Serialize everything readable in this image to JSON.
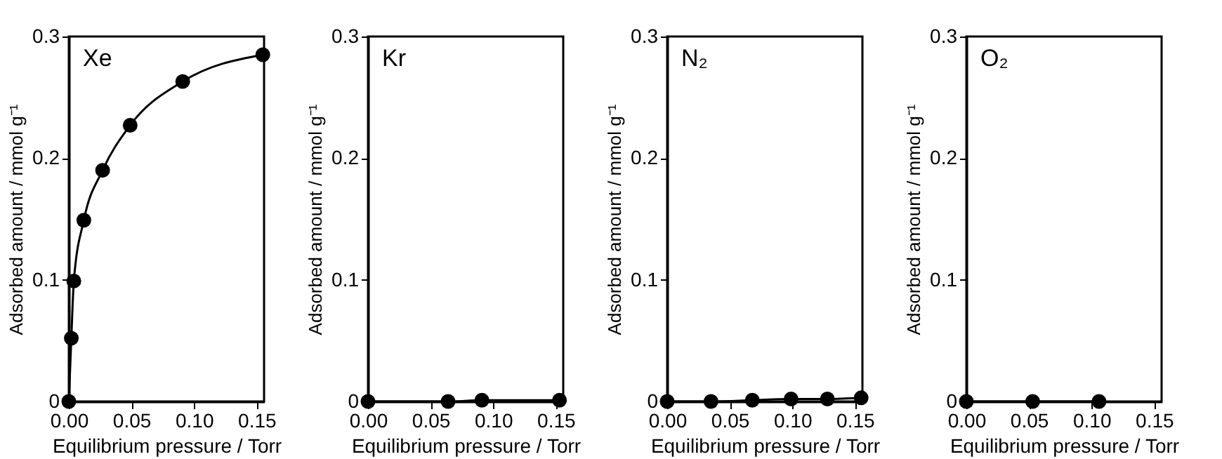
{
  "chart_data": [
    {
      "type": "line",
      "title": "Xe",
      "xlabel": "Equilibrium pressure / Torr",
      "ylabel": "Adsorbed amount / mmol g⁻¹",
      "marker": "circle",
      "grid": false,
      "series": [
        {
          "color": "#000000",
          "x": [
            0,
            0.002,
            0.004,
            0.012,
            0.027,
            0.049,
            0.091,
            0.155
          ],
          "values": [
            0,
            0.052,
            0.099,
            0.149,
            0.19,
            0.227,
            0.263,
            0.285
          ]
        }
      ],
      "xlim": [
        0,
        0.156
      ],
      "ylim": [
        0,
        0.3
      ],
      "xticks": [
        {
          "value": 0,
          "label": "0.00"
        },
        {
          "value": 0.05,
          "label": "0.05"
        },
        {
          "value": 0.1,
          "label": "0.10"
        },
        {
          "value": 0.15,
          "label": "0.15"
        }
      ],
      "yticks": [
        0,
        0.1,
        0.2,
        0.3
      ]
    },
    {
      "type": "line",
      "title": "Kr",
      "xlabel": "Equilibrium pressure / Torr",
      "ylabel": "Adsorbed amount / mmol g⁻¹",
      "marker": "circle",
      "grid": false,
      "series": [
        {
          "color": "#000000",
          "x": [
            0,
            0.064,
            0.091,
            0.153
          ],
          "values": [
            0,
            0,
            0.001,
            0.001
          ]
        }
      ],
      "xlim": [
        0,
        0.156
      ],
      "ylim": [
        0,
        0.3
      ],
      "xticks": [
        {
          "value": 0,
          "label": "0.00"
        },
        {
          "value": 0.05,
          "label": "0.05"
        },
        {
          "value": 0.1,
          "label": "0.10"
        },
        {
          "value": 0.15,
          "label": "0.15"
        }
      ],
      "yticks": [
        0,
        0.1,
        0.2,
        0.3
      ]
    },
    {
      "type": "line",
      "title": "N₂",
      "xlabel": "Equilibrium pressure / Torr",
      "ylabel": "Adsorbed amount / mmol g⁻¹",
      "marker": "circle",
      "grid": false,
      "series": [
        {
          "color": "#000000",
          "x": [
            0,
            0.035,
            0.068,
            0.099,
            0.128,
            0.155
          ],
          "values": [
            0,
            0,
            0.001,
            0.002,
            0.002,
            0.003
          ]
        }
      ],
      "xlim": [
        0,
        0.156
      ],
      "ylim": [
        0,
        0.3
      ],
      "xticks": [
        {
          "value": 0,
          "label": "0.00"
        },
        {
          "value": 0.05,
          "label": "0.05"
        },
        {
          "value": 0.1,
          "label": "0.10"
        },
        {
          "value": 0.15,
          "label": "0.15"
        }
      ],
      "yticks": [
        0,
        0.1,
        0.2,
        0.3
      ]
    },
    {
      "type": "line",
      "title": "O₂",
      "xlabel": "Equilibrium pressure / Torr",
      "ylabel": "Adsorbed amount / mmol g⁻¹",
      "marker": "circle",
      "grid": false,
      "series": [
        {
          "color": "#000000",
          "x": [
            0,
            0.053,
            0.106
          ],
          "values": [
            0,
            0,
            0
          ]
        }
      ],
      "xlim": [
        0,
        0.156
      ],
      "ylim": [
        0,
        0.3
      ],
      "xticks": [
        {
          "value": 0,
          "label": "0.00"
        },
        {
          "value": 0.05,
          "label": "0.05"
        },
        {
          "value": 0.1,
          "label": "0.10"
        },
        {
          "value": 0.15,
          "label": "0.15"
        }
      ],
      "yticks": [
        0,
        0.1,
        0.2,
        0.3
      ]
    }
  ]
}
